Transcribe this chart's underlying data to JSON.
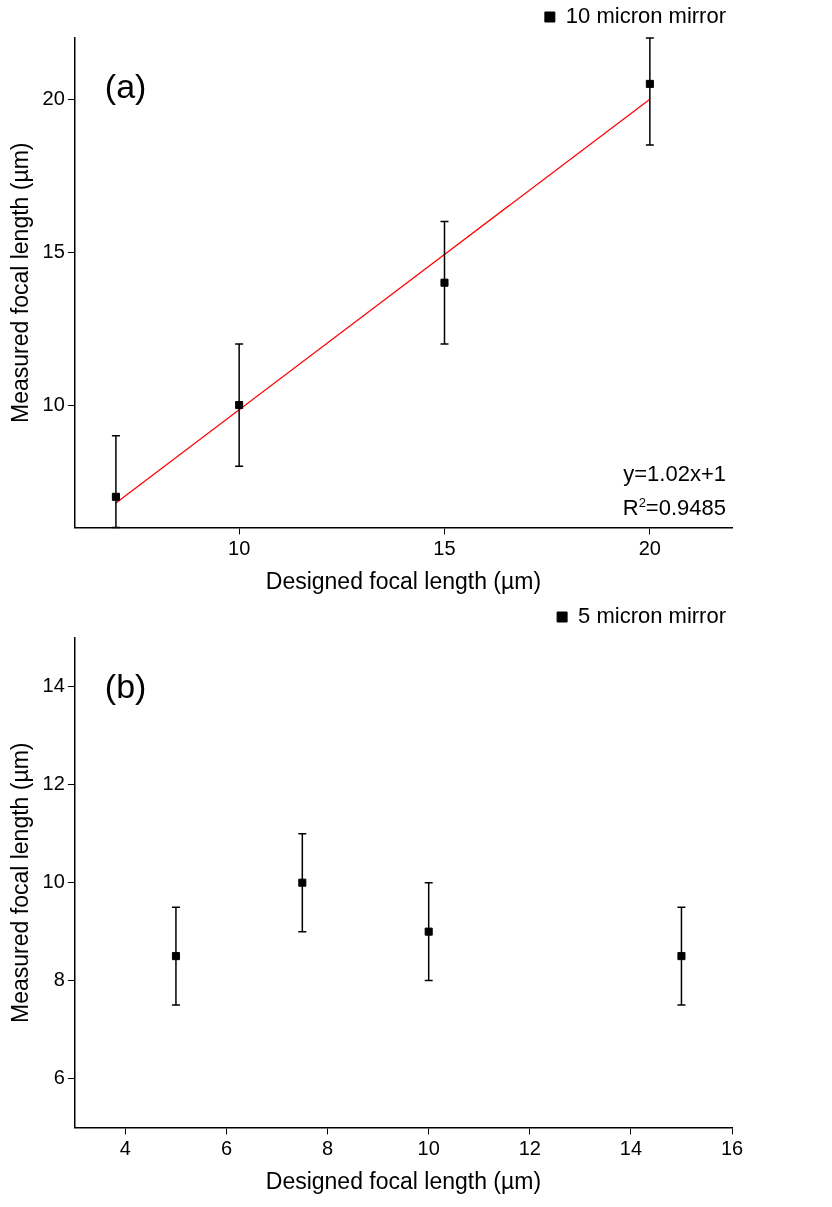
{
  "chart_data": [
    {
      "type": "scatter",
      "xlabel": "Designed focal length (µm)",
      "ylabel": "Measured focal length (µm)",
      "annotations": [
        "(a)",
        "y=1.02x+1",
        "R$^{2}$=0.9485"
      ],
      "x": [
        7,
        10,
        15,
        20
      ],
      "xlim": [
        6,
        22
      ],
      "xticks": [
        10,
        15,
        20
      ],
      "ylim": [
        6,
        22
      ],
      "yticks": [
        10,
        15,
        20
      ],
      "marker": "square",
      "legend": "top right",
      "series": [
        {
          "name": "10 micron mirror",
          "color": "#000000",
          "values": [
            7,
            10,
            14,
            20.5
          ],
          "errors": [
            [
              6,
              9
            ],
            2,
            2,
            [
              18.5,
              22
            ]
          ]
        },
        {
          "type": "line",
          "color": "#ff0000",
          "x": [
            7,
            20
          ],
          "values": [
            6.8,
            20
          ],
          "marker": "none"
        }
      ]
    },
    {
      "type": "scatter",
      "xlabel": "Designed focal length (µm)",
      "ylabel": "Measured focal length (µm)",
      "annotations": [
        "(b)"
      ],
      "x": [
        5,
        7.5,
        10,
        15
      ],
      "xlim": [
        3,
        16
      ],
      "xticks": [
        4,
        6,
        8,
        10,
        12,
        14,
        16
      ],
      "ylim": [
        5,
        15
      ],
      "yticks": [
        6,
        8,
        10,
        12,
        14
      ],
      "marker": "square",
      "legend": "top right",
      "series": [
        {
          "name": "5 micron mirror",
          "color": "#000000",
          "values": [
            8.5,
            10,
            9,
            8.5
          ],
          "errors": [
            1,
            1,
            1,
            1
          ]
        }
      ]
    }
  ]
}
